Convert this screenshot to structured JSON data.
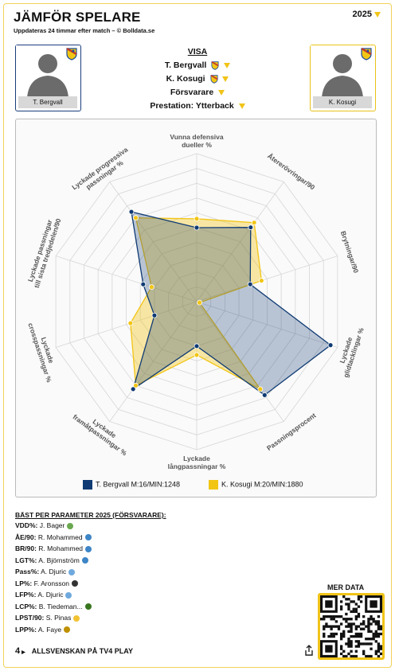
{
  "header": {
    "title": "JÄMFÖR SPELARE",
    "subtitle": "Uppdateras 24 timmar efter match – © Bolldata.se",
    "year": "2025"
  },
  "players": {
    "left": {
      "name": "T. Bergvall",
      "color": "#0f3a73"
    },
    "right": {
      "name": "K. Kosugi",
      "color": "#f2c515"
    }
  },
  "visa": {
    "heading": "VISA",
    "player1": "T. Bergvall",
    "player2": "K. Kosugi",
    "position": "Försvarare",
    "performance": "Prestation: Ytterback"
  },
  "chart_data": {
    "type": "radar",
    "axes": [
      "Vunna defensiva dueller %",
      "Återerövringar/90",
      "Brytningar/90",
      "Lyckade glidtacklingar %",
      "Passningsprocent",
      "Lyckade långpassningar %",
      "Lyckade framåtpassningar %",
      "Lyckade crosspassningar %",
      "Lyckade passningar till sista tredjedelen/90",
      "Lyckade progressiva passningar %"
    ],
    "axis_lines": [
      [
        "Vunna defensiva",
        "dueller %"
      ],
      [
        "Återerövringar/90"
      ],
      [
        "Brytningar/90"
      ],
      [
        "Lyckade",
        "glidtacklingar %"
      ],
      [
        "Passningsprocent"
      ],
      [
        "Lyckade",
        "långpassningar %"
      ],
      [
        "Lyckade",
        "framåtpassningar %"
      ],
      [
        "Lyckade",
        "crosspassningar %"
      ],
      [
        "Lyckade passningar",
        "till sista tredjedelen/90"
      ],
      [
        "Lyckade progressiva",
        "passningar %"
      ]
    ],
    "range": [
      0,
      100
    ],
    "rings": 10,
    "series": [
      {
        "name": "T. Bergvall M:16/MIN:1248",
        "color": "#0f3a73",
        "values": [
          50,
          62,
          38,
          95,
          78,
          30,
          73,
          30,
          38,
          75
        ]
      },
      {
        "name": "K. Kosugi M:20/MIN:1880",
        "color": "#f2c515",
        "values": [
          56,
          66,
          46,
          2,
          73,
          36,
          70,
          47,
          32,
          70
        ]
      }
    ]
  },
  "best": {
    "heading": "BÄST PER PARAMETER 2025 (FÖRSVARARE):",
    "rows": [
      {
        "key": "VDD%",
        "name": "J. Bager",
        "icon": "#6aa84f"
      },
      {
        "key": "ÅE/90",
        "name": "R. Mohammed",
        "icon": "#3d85c6"
      },
      {
        "key": "BR/90",
        "name": "R. Mohammed",
        "icon": "#3d85c6"
      },
      {
        "key": "LGT%",
        "name": "A. Björnström",
        "icon": "#3d85c6"
      },
      {
        "key": "Pass%",
        "name": "A. Djuric",
        "icon": "#6fa8dc"
      },
      {
        "key": "LP%",
        "name": "F. Aronsson",
        "icon": "#333333"
      },
      {
        "key": "LFP%",
        "name": "A. Djuric",
        "icon": "#6fa8dc"
      },
      {
        "key": "LCP%",
        "name": "B. Tiedeman...",
        "icon": "#38761d"
      },
      {
        "key": "LPST/90",
        "name": "S. Pinas",
        "icon": "#f1c232"
      },
      {
        "key": "LPP%",
        "name": "A. Faye",
        "icon": "#bf9000"
      }
    ]
  },
  "qr_label": "MER DATA",
  "footer": {
    "text": "ALLSVENSKAN PÅ TV4 PLAY",
    "logo": "4"
  }
}
